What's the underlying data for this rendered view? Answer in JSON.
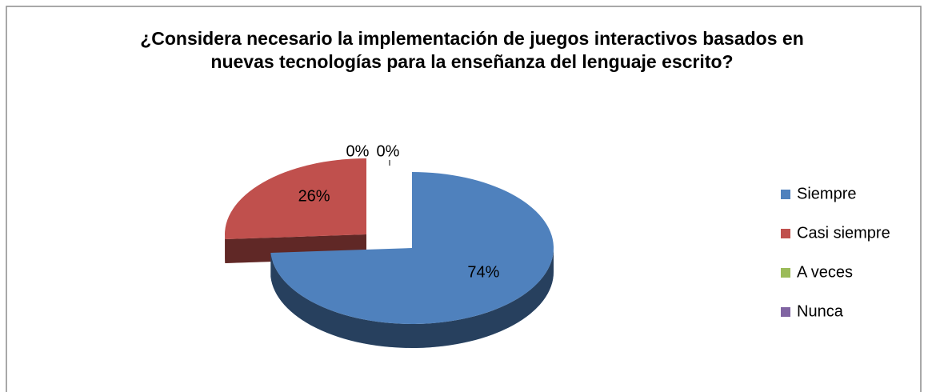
{
  "chart_data": {
    "type": "pie",
    "title": "¿Considera necesario la implementación de juegos interactivos basados en nuevas tecnologías para la enseñanza del lenguaje escrito?",
    "categories": [
      "Siempre",
      "Casi siempre",
      "A veces",
      "Nunca"
    ],
    "values": [
      74,
      26,
      0,
      0
    ],
    "value_labels": [
      "74%",
      "26%",
      "0%",
      "0%"
    ],
    "colors": [
      "#4f81bd",
      "#c0504d",
      "#9bbb59",
      "#8064a2"
    ],
    "legend": "right"
  }
}
